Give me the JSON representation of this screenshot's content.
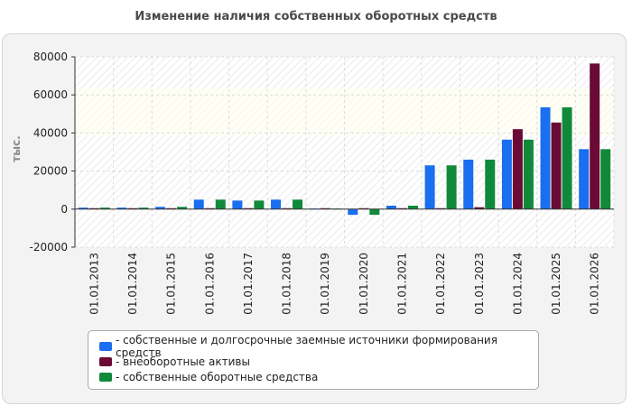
{
  "chart_data": {
    "type": "bar",
    "title": "Изменение наличия собственных оборотных средств",
    "ylabel": "тыс.",
    "xlabel": "",
    "ylim": [
      -20000,
      80000
    ],
    "yticks": [
      "80000",
      "60000",
      "40000",
      "20000",
      "0",
      "-20000"
    ],
    "ytick_values": [
      80000,
      60000,
      40000,
      20000,
      0,
      -20000
    ],
    "categories": [
      "01.01.2013",
      "01.01.2014",
      "01.01.2015",
      "01.01.2016",
      "01.01.2017",
      "01.01.2018",
      "01.01.2019",
      "01.01.2020",
      "01.01.2021",
      "01.01.2022",
      "01.01.2023",
      "01.01.2024",
      "01.01.2025",
      "01.01.2026"
    ],
    "series": [
      {
        "name": "- собственные и долгосрочные заемные источники формирования средств",
        "color": "#1a6ef0",
        "values": [
          800,
          800,
          1200,
          5000,
          4500,
          5000,
          300,
          -3000,
          1800,
          23000,
          26000,
          36500,
          53500,
          31500
        ]
      },
      {
        "name": "- внеоборотные активы",
        "color": "#6a0a35",
        "values": [
          500,
          500,
          500,
          500,
          500,
          500,
          500,
          500,
          500,
          500,
          1000,
          42000,
          45500,
          76500
        ]
      },
      {
        "name": "- собственные оборотные средства",
        "color": "#108a3a",
        "values": [
          800,
          800,
          1200,
          5000,
          4500,
          5000,
          300,
          -3000,
          1800,
          23000,
          26000,
          36500,
          53500,
          31500
        ]
      }
    ],
    "grid": true,
    "legend_position": "bottom"
  }
}
